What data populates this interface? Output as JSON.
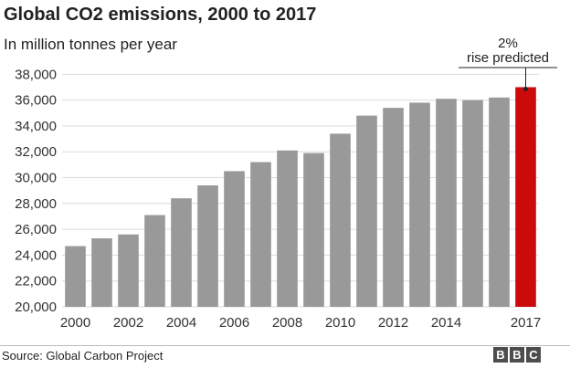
{
  "header": {
    "title": "Global CO2 emissions, 2000 to 2017",
    "subtitle": "In million tonnes per year"
  },
  "footer": {
    "source": "Source: Global Carbon Project",
    "logo_letters": [
      "B",
      "B",
      "C"
    ]
  },
  "chart_data": {
    "type": "bar",
    "title": "Global CO2 emissions, 2000 to 2017",
    "subtitle": "In million tonnes per year",
    "categories": [
      "2000",
      "2001",
      "2002",
      "2003",
      "2004",
      "2005",
      "2006",
      "2007",
      "2008",
      "2009",
      "2010",
      "2011",
      "2012",
      "2013",
      "2014",
      "2015",
      "2016",
      "2017"
    ],
    "values": [
      24700,
      25300,
      25600,
      27100,
      28400,
      29400,
      30500,
      31200,
      32100,
      31900,
      33400,
      34800,
      35400,
      35800,
      36100,
      36000,
      36200,
      37000
    ],
    "x_tick_labels": [
      "2000",
      "",
      "2002",
      "",
      "2004",
      "",
      "2006",
      "",
      "2008",
      "",
      "2010",
      "",
      "2012",
      "",
      "2014",
      "",
      "",
      "2017"
    ],
    "y_ticks": [
      20000,
      22000,
      24000,
      26000,
      28000,
      30000,
      32000,
      34000,
      36000,
      38000
    ],
    "y_tick_labels": [
      "20,000",
      "22,000",
      "24,000",
      "26,000",
      "28,000",
      "30,000",
      "32,000",
      "34,000",
      "36,000",
      "38,000"
    ],
    "ylim": [
      20000,
      38800
    ],
    "xlabel": "",
    "ylabel": "",
    "grid": true,
    "colors": {
      "bar": "#999999",
      "highlight": "#cc0a0a",
      "grid": "#dcdcdc"
    },
    "highlight_index": 17,
    "annotation": {
      "line1": "2%",
      "line2": "rise predicted",
      "target_index": 17
    }
  }
}
